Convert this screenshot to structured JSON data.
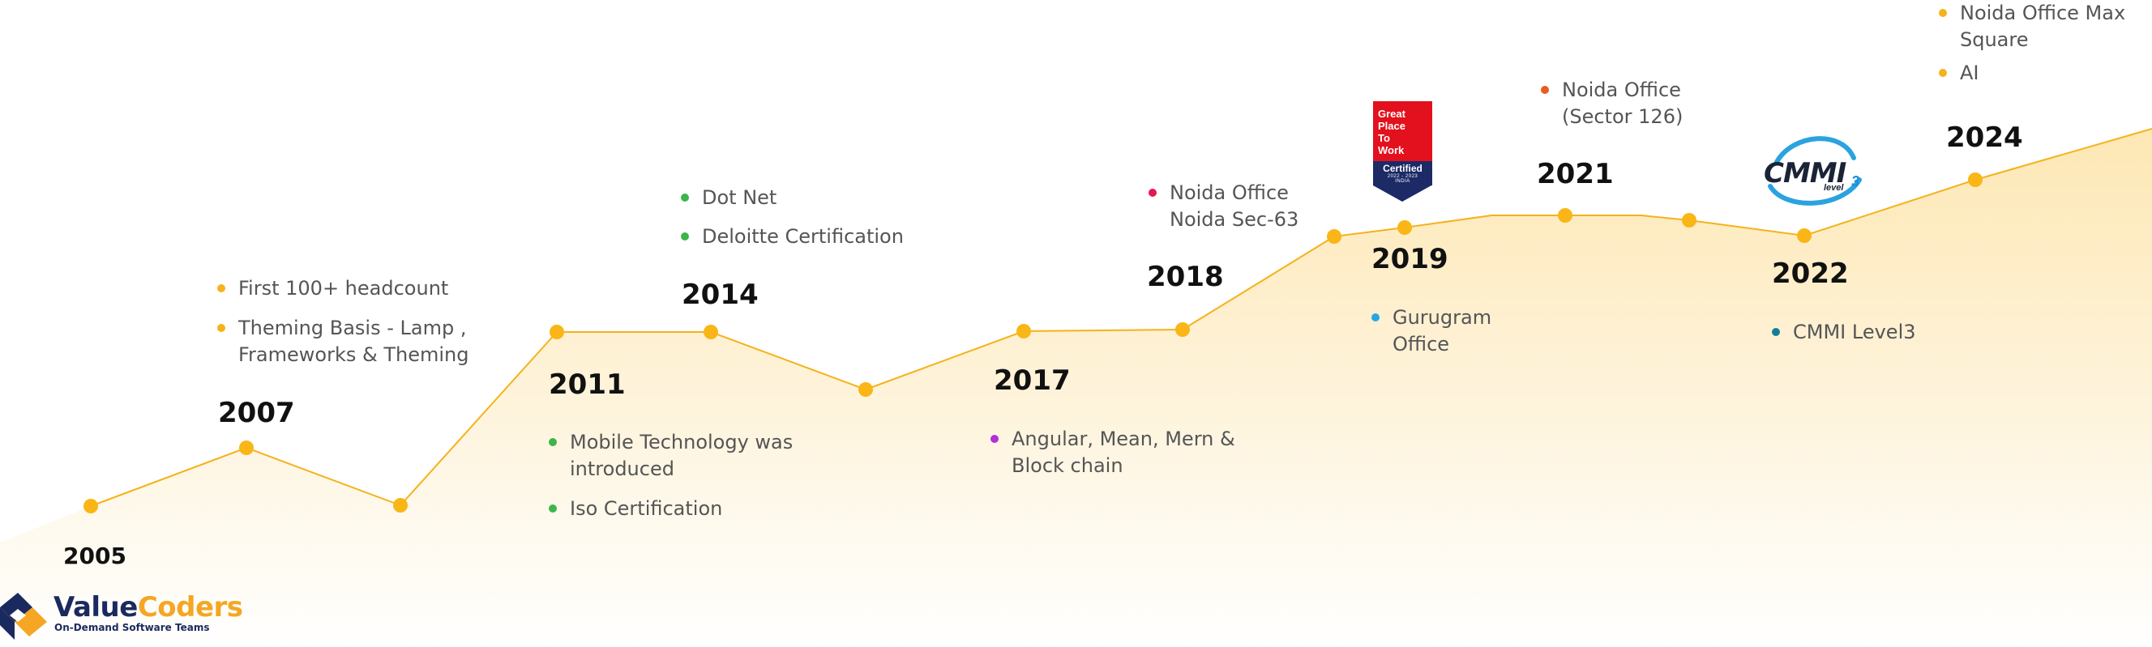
{
  "colors": {
    "line": "#f5b21b",
    "node": "#f9b616",
    "fill_top": "#fde7b4",
    "fill_bottom": "#ffffff",
    "bullet_yellow": "#f5b21b",
    "bullet_green": "#3cb54a",
    "bullet_purple": "#b12fd6",
    "bullet_red": "#e8154e",
    "bullet_blue": "#27a6e5",
    "bullet_orange": "#e65d1c",
    "bullet_teal": "#137e99"
  },
  "years": {
    "y2005": "2005",
    "y2007": "2007",
    "y2011": "2011",
    "y2014": "2014",
    "y2017": "2017",
    "y2018": "2018",
    "y2019": "2019",
    "y2021": "2021",
    "y2022": "2022",
    "y2024": "2024"
  },
  "notes": {
    "y2007": [
      "First 100+ headcount",
      "Theming Basis - Lamp , Frameworks & Theming"
    ],
    "y2011": [
      "Mobile Technology was introduced",
      "Iso Certification"
    ],
    "y2014": [
      "Dot Net",
      "Deloitte Certification"
    ],
    "y2017": [
      "Angular, Mean, Mern & Block chain"
    ],
    "y2018": [
      "Noida Office Noida Sec-63"
    ],
    "y2019": [
      "Gurugram Office"
    ],
    "y2021": [
      "Noida Office (Sector 126)"
    ],
    "y2022": [
      "CMMI Level3"
    ],
    "y2024": [
      "Noida Office Max Square",
      "AI"
    ]
  },
  "badges": {
    "gptw": {
      "line1": "Great",
      "line2": "Place",
      "line3": "To",
      "line4": "Work",
      "certified": "Certified",
      "dates": "2022 - 2023",
      "country": "INDIA"
    },
    "cmmi": {
      "word": "CMMI",
      "level": "level",
      "number": "3"
    }
  },
  "logo": {
    "name_part1": "Value",
    "name_part2": "Coders",
    "tagline": "On-Demand Software Teams"
  }
}
